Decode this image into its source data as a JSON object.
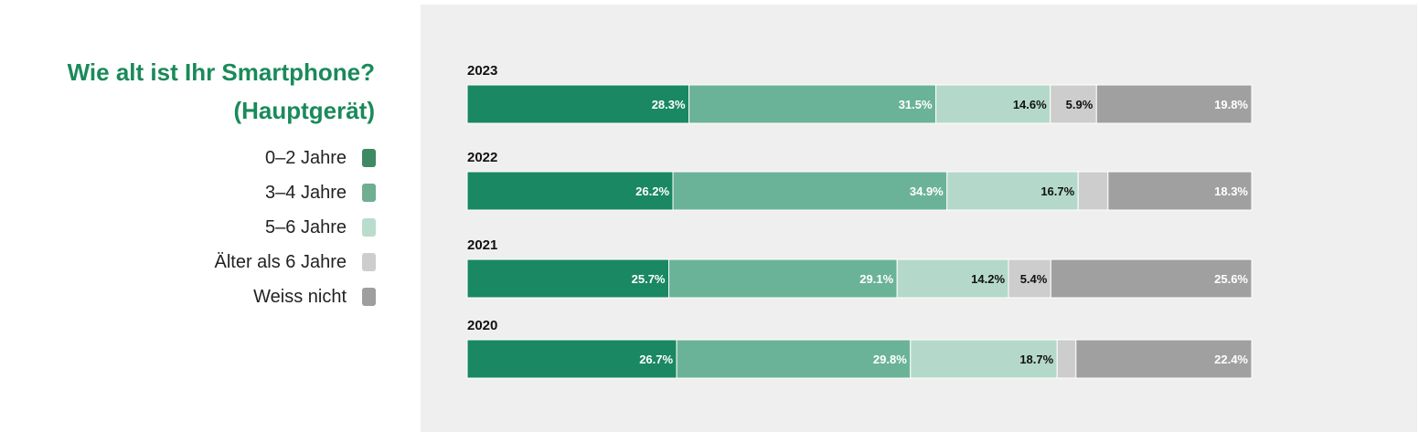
{
  "title_line1": "Wie alt ist Ihr Smartphone?",
  "title_line2": "(Hauptgerät)",
  "colors": {
    "title": "#1a8a5a",
    "panel": "#efefef"
  },
  "chart_data": {
    "type": "bar",
    "orientation": "horizontal",
    "stacked": true,
    "title": "Wie alt ist Ihr Smartphone? (Hauptgerät)",
    "categories": [
      "2023",
      "2022",
      "2021",
      "2020"
    ],
    "series": [
      {
        "name": "0–2 Jahre",
        "color": "#1a8862",
        "label_color": "#ffffff",
        "values": [
          28.3,
          26.2,
          25.7,
          26.7
        ],
        "labels": [
          "28.3%",
          "26.2%",
          "25.7%",
          "26.7%"
        ]
      },
      {
        "name": "3–4 Jahre",
        "color": "#6bb398",
        "label_color": "#ffffff",
        "values": [
          31.5,
          34.9,
          29.1,
          29.8
        ],
        "labels": [
          "31.5%",
          "34.9%",
          "29.1%",
          "29.8%"
        ]
      },
      {
        "name": "5–6 Jahre",
        "color": "#b4d9ca",
        "label_color": "#111111",
        "values": [
          14.6,
          16.7,
          14.2,
          18.7
        ],
        "labels": [
          "14.6%",
          "16.7%",
          "14.2%",
          "18.7%"
        ]
      },
      {
        "name": "Älter als 6 Jahre",
        "color": "#cdcdcd",
        "label_color": "#111111",
        "values": [
          5.9,
          3.8,
          5.4,
          2.4
        ],
        "labels": [
          "5.9%",
          "",
          "5.4%",
          ""
        ]
      },
      {
        "name": "Weiss nicht",
        "color": "#a0a0a0",
        "label_color": "#ffffff",
        "values": [
          19.8,
          18.3,
          25.6,
          22.4
        ],
        "labels": [
          "19.8%",
          "18.3%",
          "25.6%",
          "22.4%"
        ]
      }
    ],
    "legend_swatch_colors": [
      "#3d8a63",
      "#6fae93",
      "#b9dccd",
      "#cdcdcd",
      "#9e9e9e"
    ],
    "xlim": [
      0,
      100
    ]
  }
}
